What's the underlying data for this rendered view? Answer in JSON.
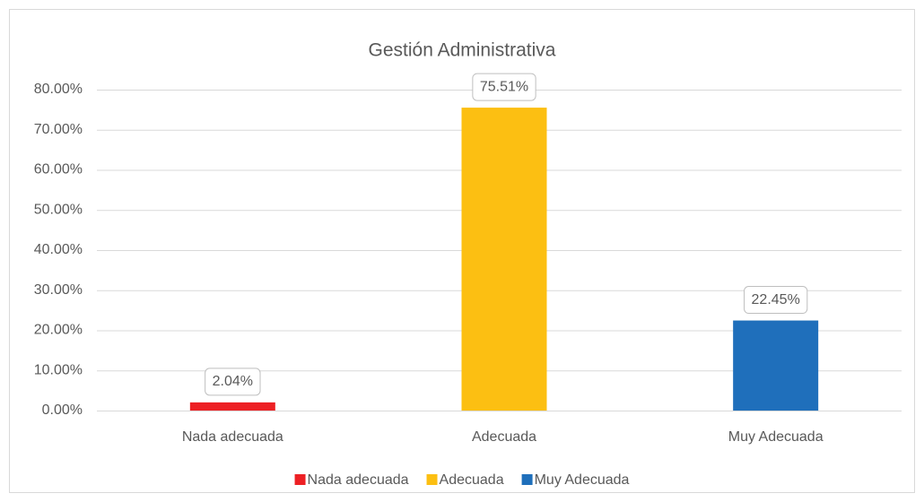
{
  "chart_data": {
    "type": "bar",
    "title": "Gestión Administrativa",
    "categories": [
      "Nada adecuada",
      "Adecuada",
      "Muy Adecuada"
    ],
    "values": [
      2.04,
      75.51,
      22.45
    ],
    "value_labels": [
      "2.04%",
      "75.51%",
      "22.45%"
    ],
    "colors": [
      "#ed2024",
      "#fcbf12",
      "#1f6fbb"
    ],
    "ylim": [
      0,
      80
    ],
    "yticks": [
      {
        "value": 0,
        "label": "0.00%"
      },
      {
        "value": 10,
        "label": "10.00%"
      },
      {
        "value": 20,
        "label": "20.00%"
      },
      {
        "value": 30,
        "label": "30.00%"
      },
      {
        "value": 40,
        "label": "40.00%"
      },
      {
        "value": 50,
        "label": "50.00%"
      },
      {
        "value": 60,
        "label": "60.00%"
      },
      {
        "value": 70,
        "label": "70.00%"
      },
      {
        "value": 80,
        "label": "80.00%"
      }
    ],
    "grid": true,
    "legend": "bottom"
  }
}
